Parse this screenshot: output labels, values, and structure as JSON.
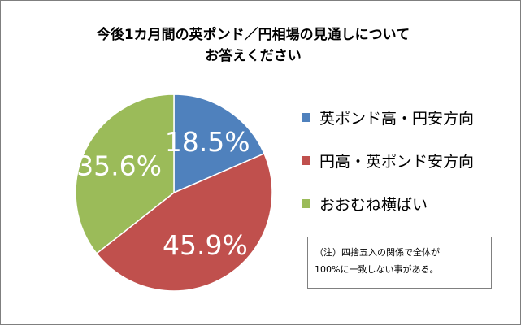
{
  "chart_data": {
    "type": "pie",
    "title": "今後1カ月間の英ポンド／円相場の見通しについてお答えください",
    "title_lines": [
      "今後1カ月間の英ポンド／円相場の見通しについて",
      "お答えください"
    ],
    "categories": [
      "英ポンド高・円安方向",
      "円高・英ポンド安方向",
      "おおむね横ばい"
    ],
    "values": [
      18.5,
      45.9,
      35.6
    ],
    "data_labels": [
      "18.5%",
      "45.9%",
      "35.6%"
    ],
    "colors": [
      "#4f81bd",
      "#c0504d",
      "#9bbb59"
    ],
    "start_angle_deg": 0,
    "direction": "clockwise",
    "legend_position": "right",
    "label_color": "#ffffff"
  },
  "note": {
    "lines": [
      "（注）四捨五入の関係で全体が",
      "100%に一致しない事がある。"
    ]
  }
}
